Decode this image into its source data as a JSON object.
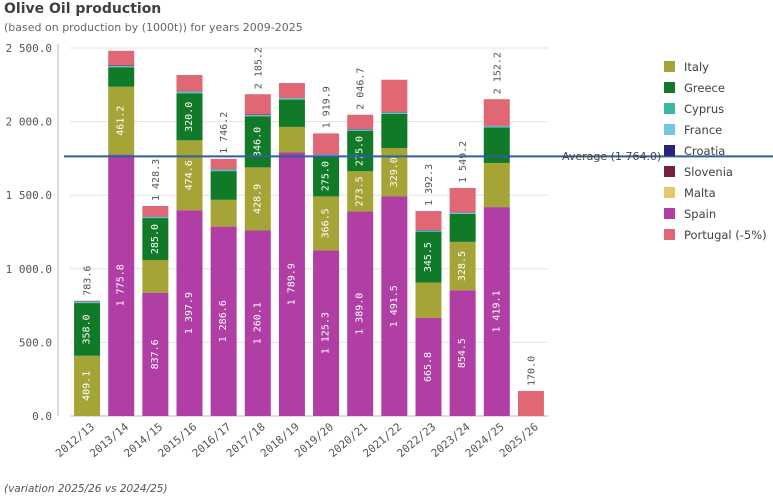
{
  "header": {
    "title": "Olive Oil production",
    "subtitle": "(based on production by (1000t)) for years 2009-2025"
  },
  "footnote": "(variation 2025/26 vs 2024/25)",
  "average": {
    "label": "Average (1 764.0)",
    "value": 1764.0,
    "color": "#2f5f9e"
  },
  "legend": [
    {
      "name": "Italy",
      "color": "#a4a437"
    },
    {
      "name": "Greece",
      "color": "#107a28"
    },
    {
      "name": "Cyprus",
      "color": "#3ab8a0"
    },
    {
      "name": "France",
      "color": "#74c6e3"
    },
    {
      "name": "Croatia",
      "color": "#2c2277"
    },
    {
      "name": "Slovenia",
      "color": "#7a1f44"
    },
    {
      "name": "Malta",
      "color": "#e3c96e"
    },
    {
      "name": "Spain",
      "color": "#b13ea4"
    },
    {
      "name": "Portugal (-5%)",
      "color": "#e06774"
    }
  ],
  "chart_data": {
    "type": "bar",
    "stacked": true,
    "title": "Olive Oil production",
    "ylim": [
      0,
      2500
    ],
    "yticks": [
      0,
      500,
      1000,
      1500,
      2000,
      2500
    ],
    "ytick_labels": [
      "0.0",
      "500.0",
      "1 000.0",
      "1 500.0",
      "2 000.0",
      "2 500.0"
    ],
    "categories": [
      "2012/13",
      "2013/14",
      "2014/15",
      "2015/16",
      "2016/17",
      "2017/18",
      "2018/19",
      "2019/20",
      "2020/21",
      "2021/22",
      "2022/23",
      "2023/24",
      "2024/25",
      "2025/26"
    ],
    "totals": [
      783.6,
      null,
      1428.3,
      null,
      1746.2,
      2185.2,
      null,
      1919.9,
      2046.7,
      null,
      1392.3,
      1549.2,
      2152.2,
      170.0
    ],
    "total_labels": [
      "783.6",
      "",
      "1 428.3",
      "",
      "1 746.2",
      "2 185.2",
      "",
      "1 919.9",
      "2 046.7",
      "",
      "1 392.3",
      "1 549.2",
      "2 152.2",
      "170.0"
    ],
    "series": [
      {
        "name": "Spain",
        "color": "#b13ea4",
        "values": [
          0,
          1775.8,
          837.6,
          1397.9,
          1286.6,
          1260.1,
          1789.9,
          1125.3,
          1389.0,
          1491.5,
          665.8,
          854.5,
          1419.1,
          0
        ],
        "labels": [
          "",
          "1 775.8",
          "837.6",
          "1 397.9",
          "1 286.6",
          "1 260.1",
          "1 789.9",
          "1 125.3",
          "1 389.0",
          "1 491.5",
          "665.8",
          "854.5",
          "1 419.1",
          ""
        ]
      },
      {
        "name": "Italy",
        "color": "#a4a437",
        "values": [
          409.1,
          461.2,
          222.0,
          474.6,
          182.0,
          428.9,
          174.0,
          366.5,
          273.5,
          329.0,
          241.0,
          328.5,
          300.0,
          0
        ],
        "labels": [
          "409.1",
          "461.2",
          "",
          "474.6",
          "",
          "428.9",
          "",
          "366.5",
          "273.5",
          "329.0",
          "",
          "328.5",
          "",
          ""
        ]
      },
      {
        "name": "Greece",
        "color": "#107a28",
        "values": [
          358.0,
          132.0,
          285.0,
          320.0,
          195.0,
          346.0,
          185.0,
          275.0,
          275.0,
          232.0,
          345.5,
          190.0,
          240.0,
          0
        ],
        "labels": [
          "358.0",
          "",
          "285.0",
          "320.0",
          "",
          "346.0",
          "",
          "275.0",
          "275.0",
          "",
          "345.5",
          "",
          "",
          ""
        ]
      },
      {
        "name": "Cyprus",
        "color": "#3ab8a0",
        "values": [
          5,
          5,
          5,
          6,
          6,
          6,
          6,
          5,
          5,
          5,
          4,
          4,
          5,
          0
        ]
      },
      {
        "name": "France",
        "color": "#74c6e3",
        "values": [
          4,
          4,
          4,
          5,
          4,
          4,
          4,
          4,
          4,
          4,
          4,
          4,
          4,
          0
        ]
      },
      {
        "name": "Croatia",
        "color": "#2c2277",
        "values": [
          3,
          3,
          3,
          3,
          3,
          3,
          3,
          3,
          3,
          3,
          3,
          3,
          3,
          0
        ]
      },
      {
        "name": "Slovenia",
        "color": "#7a1f44",
        "values": [
          0,
          0,
          0,
          0,
          0,
          0,
          0,
          0,
          0,
          0,
          0,
          0,
          0,
          0
        ]
      },
      {
        "name": "Malta",
        "color": "#e3c96e",
        "values": [
          0,
          0,
          0,
          0,
          0,
          0,
          0,
          0,
          0,
          0,
          0,
          0,
          0,
          0
        ]
      },
      {
        "name": "Portugal (-5%)",
        "color": "#e06774",
        "values": [
          4,
          100,
          70,
          110,
          70,
          138,
          100,
          141,
          97,
          220,
          129,
          165,
          181,
          170
        ]
      }
    ]
  }
}
